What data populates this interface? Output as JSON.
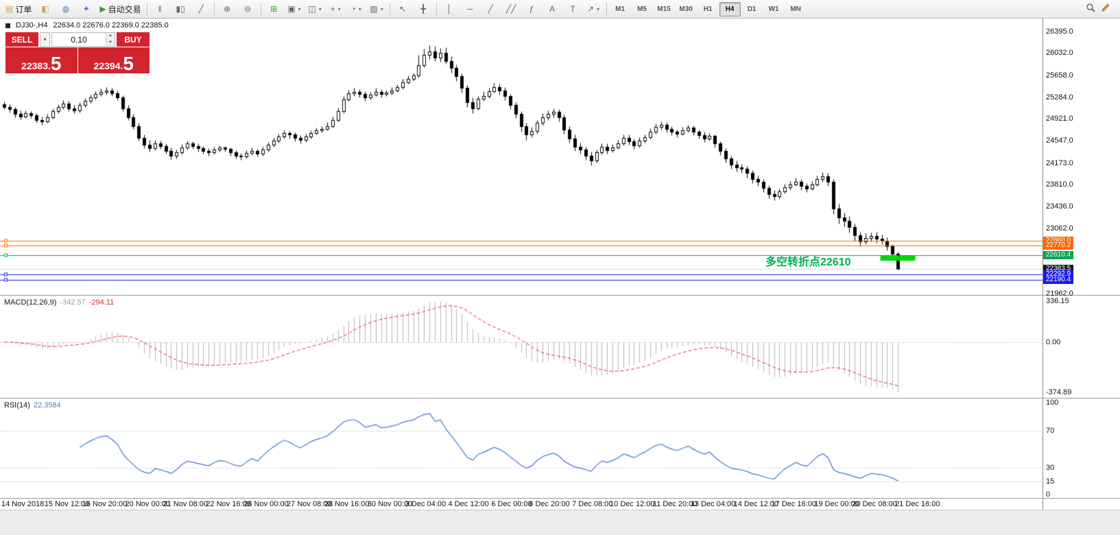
{
  "toolbar": {
    "items": [
      {
        "name": "new-order-button",
        "glyph": "▤",
        "color": "#caa64a",
        "label": "订单"
      },
      {
        "name": "chart-window-icon",
        "glyph": "◧",
        "color": "#caa64a"
      },
      {
        "name": "market-watch-icon",
        "glyph": "◍",
        "color": "#4a7ebb"
      },
      {
        "name": "navigator-icon",
        "glyph": "✦",
        "color": "#4a7ebb"
      },
      {
        "name": "autotrading-button",
        "glyph": "▶",
        "color": "#2e9e2e",
        "label": "自动交易"
      },
      {
        "type": "sep"
      },
      {
        "name": "bar-chart-icon",
        "glyph": "‖"
      },
      {
        "name": "candlestick-chart-icon",
        "glyph": "▮▯"
      },
      {
        "name": "line-chart-icon",
        "glyph": "╱"
      },
      {
        "type": "sep"
      },
      {
        "name": "zoom-in-icon",
        "glyph": "⊕"
      },
      {
        "name": "zoom-out-icon",
        "glyph": "⊖"
      },
      {
        "type": "sep"
      },
      {
        "name": "tile-windows-icon",
        "glyph": "⊞",
        "color": "#3a9e3a"
      },
      {
        "name": "new-chart-icon",
        "glyph": "▣",
        "caret": true
      },
      {
        "name": "profiles-icon",
        "glyph": "◫",
        "caret": true
      },
      {
        "name": "indicators-icon",
        "glyph": "+",
        "color": "#2e9e2e",
        "caret": true
      },
      {
        "name": "periods-icon",
        "glyph": "◔",
        "caret": true
      },
      {
        "name": "templates-icon",
        "glyph": "▨",
        "caret": true
      },
      {
        "type": "sep"
      },
      {
        "name": "cursor-icon",
        "glyph": "↖"
      },
      {
        "name": "crosshair-icon",
        "glyph": "╋"
      },
      {
        "type": "sep"
      },
      {
        "name": "vertical-line-icon",
        "glyph": "│"
      },
      {
        "name": "horizontal-line-icon",
        "glyph": "─"
      },
      {
        "name": "trendline-icon",
        "glyph": "╱"
      },
      {
        "name": "channel-icon",
        "glyph": "╱╱"
      },
      {
        "name": "fibonacci-icon",
        "glyph": "ƒ"
      },
      {
        "name": "text-icon",
        "glyph": "A"
      },
      {
        "name": "label-icon",
        "glyph": "T"
      },
      {
        "name": "arrows-icon",
        "glyph": "↗",
        "caret": true
      },
      {
        "type": "sep"
      },
      {
        "type": "timeframes"
      }
    ],
    "timeframes": [
      "M1",
      "M5",
      "M15",
      "M30",
      "H1",
      "H4",
      "D1",
      "W1",
      "MN"
    ],
    "active_timeframe": "H4"
  },
  "chart": {
    "title": "DJ30-,H4",
    "ohlc": "22634.0 22676.0 22369.0 22385.0",
    "annotation": "多空转折点22610",
    "price_axis_labels": [
      "26395.0",
      "26032.0",
      "25658.0",
      "25284.0",
      "24921.0",
      "24547.0",
      "24173.0",
      "23810.0",
      "23436.0",
      "23062.0",
      "21962.0"
    ],
    "badges": [
      {
        "text": "22860.0",
        "color": "#ff6600",
        "value": 22860.0
      },
      {
        "text": "22770.2",
        "color": "#ff6600",
        "value": 22770.2
      },
      {
        "text": "22610.4",
        "color": "#00a651",
        "value": 22610.4
      },
      {
        "text": "22383.5",
        "color": "#15151f",
        "value": 22383.5
      },
      {
        "text": "22292.9",
        "color": "#1a1aee",
        "value": 22292.9
      },
      {
        "text": "22190.4",
        "color": "#1a1aee",
        "value": 22190.4
      }
    ]
  },
  "trade_panel": {
    "sell_label": "SELL",
    "buy_label": "BUY",
    "volume": "0.10",
    "sell_price_main": "22383.",
    "sell_price_big": "5",
    "buy_price_main": "22394.",
    "buy_price_big": "5"
  },
  "macd": {
    "label": "MACD(12,26,9)",
    "value1": "-342.57",
    "value2": "-294.11",
    "axis": [
      "336.15",
      "0.00",
      "-374.89"
    ]
  },
  "rsi": {
    "label": "RSI(14)",
    "value": "22.3584",
    "axis": [
      "100",
      "70",
      "30",
      "15",
      "0"
    ],
    "levels": [
      70,
      30,
      15
    ]
  },
  "time_axis": [
    {
      "t": "14 Nov 2018",
      "bar": 0
    },
    {
      "t": "15 Nov 12:00",
      "bar": 8
    },
    {
      "t": "16 Nov 20:00",
      "bar": 15
    },
    {
      "t": "20 Nov 00:00",
      "bar": 23
    },
    {
      "t": "21 Nov 08:00",
      "bar": 30
    },
    {
      "t": "22 Nov 16:00",
      "bar": 38
    },
    {
      "t": "26 Nov 00:00",
      "bar": 45
    },
    {
      "t": "27 Nov 08:00",
      "bar": 53
    },
    {
      "t": "28 Nov 16:00",
      "bar": 60
    },
    {
      "t": "30 Nov 00:00",
      "bar": 68
    },
    {
      "t": "3 Dec 04:00",
      "bar": 75
    },
    {
      "t": "4 Dec 12:00",
      "bar": 83
    },
    {
      "t": "6 Dec 00:00",
      "bar": 91
    },
    {
      "t": "6 Dec 20:00",
      "bar": 98
    },
    {
      "t": "7 Dec 08:00",
      "bar": 106
    },
    {
      "t": "10 Dec 12:00",
      "bar": 113
    },
    {
      "t": "11 Dec 20:00",
      "bar": 121
    },
    {
      "t": "13 Dec 04:00",
      "bar": 128
    },
    {
      "t": "14 Dec 12:00",
      "bar": 136
    },
    {
      "t": "17 Dec 16:00",
      "bar": 143
    },
    {
      "t": "19 Dec 00:00",
      "bar": 151
    },
    {
      "t": "20 Dec 08:00",
      "bar": 158
    },
    {
      "t": "21 Dec 16:00",
      "bar": 166
    }
  ],
  "chart_data": {
    "type": "candlestick",
    "symbol": "DJ30-",
    "period": "H4",
    "y_range": [
      21962,
      26395
    ],
    "bid_line": 22383.5,
    "hlines": [
      {
        "value": 22860.0,
        "color": "#ff6600"
      },
      {
        "value": 22770.2,
        "color": "#ff6600"
      },
      {
        "value": 22610.4,
        "color": "#00a651"
      },
      {
        "value": 22292.9,
        "color": "#1a1aee"
      },
      {
        "value": 22190.4,
        "color": "#1a1aee"
      }
    ],
    "highlight_segment": {
      "price": 22560,
      "start_bar": 163,
      "end_bar": 169.5,
      "color": "#00d800",
      "thickness": 7
    },
    "indicators": [
      {
        "name": "MACD",
        "params": [
          12,
          26,
          9
        ],
        "values": [
          -342.57,
          -294.11
        ]
      },
      {
        "name": "RSI",
        "params": [
          14
        ],
        "value": 22.3584
      }
    ],
    "candles": [
      [
        25160,
        25210,
        25080,
        25120
      ],
      [
        25120,
        25170,
        25030,
        25080
      ],
      [
        25080,
        25120,
        24950,
        25000
      ],
      [
        25000,
        25060,
        24910,
        24960
      ],
      [
        24960,
        25060,
        24930,
        25010
      ],
      [
        25010,
        25050,
        24930,
        24980
      ],
      [
        24980,
        25010,
        24850,
        24900
      ],
      [
        24900,
        24960,
        24820,
        24870
      ],
      [
        24870,
        25000,
        24850,
        24950
      ],
      [
        24950,
        25100,
        24920,
        25050
      ],
      [
        25050,
        25160,
        25010,
        25120
      ],
      [
        25120,
        25230,
        25080,
        25180
      ],
      [
        25180,
        25220,
        25050,
        25100
      ],
      [
        25100,
        25150,
        25010,
        25060
      ],
      [
        25060,
        25200,
        25030,
        25150
      ],
      [
        25150,
        25270,
        25120,
        25220
      ],
      [
        25220,
        25330,
        25190,
        25280
      ],
      [
        25280,
        25390,
        25250,
        25340
      ],
      [
        25340,
        25430,
        25300,
        25380
      ],
      [
        25380,
        25460,
        25330,
        25400
      ],
      [
        25400,
        25440,
        25300,
        25350
      ],
      [
        25350,
        25400,
        25230,
        25280
      ],
      [
        25280,
        25320,
        25050,
        25100
      ],
      [
        25100,
        25150,
        24900,
        24950
      ],
      [
        24950,
        25000,
        24750,
        24800
      ],
      [
        24800,
        24850,
        24550,
        24600
      ],
      [
        24600,
        24660,
        24420,
        24480
      ],
      [
        24480,
        24560,
        24370,
        24420
      ],
      [
        24420,
        24560,
        24390,
        24500
      ],
      [
        24500,
        24550,
        24410,
        24460
      ],
      [
        24460,
        24500,
        24330,
        24380
      ],
      [
        24380,
        24430,
        24240,
        24290
      ],
      [
        24290,
        24400,
        24250,
        24350
      ],
      [
        24350,
        24490,
        24320,
        24440
      ],
      [
        24440,
        24550,
        24400,
        24500
      ],
      [
        24500,
        24540,
        24410,
        24460
      ],
      [
        24460,
        24500,
        24370,
        24420
      ],
      [
        24420,
        24460,
        24330,
        24380
      ],
      [
        24380,
        24420,
        24300,
        24350
      ],
      [
        24350,
        24450,
        24320,
        24400
      ],
      [
        24400,
        24470,
        24360,
        24430
      ],
      [
        24430,
        24460,
        24360,
        24410
      ],
      [
        24410,
        24440,
        24300,
        24350
      ],
      [
        24350,
        24390,
        24250,
        24300
      ],
      [
        24300,
        24340,
        24230,
        24280
      ],
      [
        24280,
        24390,
        24250,
        24340
      ],
      [
        24340,
        24430,
        24310,
        24380
      ],
      [
        24380,
        24410,
        24280,
        24330
      ],
      [
        24330,
        24450,
        24300,
        24400
      ],
      [
        24400,
        24530,
        24370,
        24480
      ],
      [
        24480,
        24600,
        24450,
        24550
      ],
      [
        24550,
        24670,
        24520,
        24620
      ],
      [
        24620,
        24730,
        24590,
        24680
      ],
      [
        24680,
        24710,
        24590,
        24650
      ],
      [
        24650,
        24690,
        24540,
        24600
      ],
      [
        24600,
        24640,
        24510,
        24560
      ],
      [
        24560,
        24670,
        24530,
        24620
      ],
      [
        24620,
        24730,
        24590,
        24680
      ],
      [
        24680,
        24770,
        24650,
        24720
      ],
      [
        24720,
        24800,
        24690,
        24750
      ],
      [
        24750,
        24860,
        24720,
        24800
      ],
      [
        24800,
        24960,
        24770,
        24900
      ],
      [
        24900,
        25110,
        24870,
        25050
      ],
      [
        25050,
        25310,
        25020,
        25250
      ],
      [
        25250,
        25410,
        25220,
        25350
      ],
      [
        25350,
        25440,
        25300,
        25380
      ],
      [
        25380,
        25420,
        25280,
        25340
      ],
      [
        25340,
        25390,
        25220,
        25280
      ],
      [
        25280,
        25380,
        25250,
        25330
      ],
      [
        25330,
        25440,
        25300,
        25380
      ],
      [
        25380,
        25420,
        25280,
        25340
      ],
      [
        25340,
        25410,
        25300,
        25360
      ],
      [
        25360,
        25450,
        25330,
        25400
      ],
      [
        25400,
        25500,
        25370,
        25450
      ],
      [
        25450,
        25590,
        25420,
        25540
      ],
      [
        25540,
        25650,
        25510,
        25600
      ],
      [
        25600,
        25700,
        25560,
        25650
      ],
      [
        25650,
        26000,
        25620,
        25830
      ],
      [
        25830,
        26100,
        25790,
        26000
      ],
      [
        26000,
        26160,
        25930,
        26060
      ],
      [
        26060,
        26150,
        25900,
        25960
      ],
      [
        25960,
        26120,
        25880,
        26040
      ],
      [
        26040,
        26130,
        25850,
        25900
      ],
      [
        25900,
        25980,
        25700,
        25780
      ],
      [
        25780,
        25840,
        25560,
        25640
      ],
      [
        25640,
        25690,
        25360,
        25440
      ],
      [
        25440,
        25490,
        25120,
        25200
      ],
      [
        25200,
        25280,
        25020,
        25100
      ],
      [
        25100,
        25310,
        25070,
        25260
      ],
      [
        25260,
        25390,
        25220,
        25310
      ],
      [
        25310,
        25440,
        25270,
        25390
      ],
      [
        25390,
        25520,
        25360,
        25460
      ],
      [
        25460,
        25510,
        25330,
        25400
      ],
      [
        25400,
        25450,
        25230,
        25300
      ],
      [
        25300,
        25340,
        25080,
        25150
      ],
      [
        25150,
        25200,
        24930,
        25000
      ],
      [
        25000,
        25050,
        24700,
        24790
      ],
      [
        24790,
        24850,
        24560,
        24650
      ],
      [
        24650,
        24780,
        24610,
        24710
      ],
      [
        24710,
        24900,
        24670,
        24850
      ],
      [
        24850,
        25010,
        24810,
        24950
      ],
      [
        24950,
        25060,
        24900,
        25000
      ],
      [
        25000,
        25100,
        24950,
        25040
      ],
      [
        25040,
        25090,
        24870,
        24940
      ],
      [
        24940,
        24990,
        24670,
        24740
      ],
      [
        24740,
        24800,
        24520,
        24590
      ],
      [
        24590,
        24650,
        24380,
        24450
      ],
      [
        24450,
        24520,
        24330,
        24400
      ],
      [
        24400,
        24450,
        24230,
        24300
      ],
      [
        24300,
        24360,
        24130,
        24210
      ],
      [
        24210,
        24400,
        24180,
        24350
      ],
      [
        24350,
        24510,
        24320,
        24450
      ],
      [
        24450,
        24500,
        24330,
        24390
      ],
      [
        24390,
        24490,
        24350,
        24440
      ],
      [
        24440,
        24560,
        24410,
        24500
      ],
      [
        24500,
        24660,
        24470,
        24600
      ],
      [
        24600,
        24650,
        24480,
        24540
      ],
      [
        24540,
        24590,
        24410,
        24470
      ],
      [
        24470,
        24610,
        24440,
        24550
      ],
      [
        24550,
        24660,
        24520,
        24610
      ],
      [
        24610,
        24760,
        24580,
        24700
      ],
      [
        24700,
        24840,
        24670,
        24780
      ],
      [
        24780,
        24880,
        24740,
        24820
      ],
      [
        24820,
        24860,
        24690,
        24750
      ],
      [
        24750,
        24790,
        24640,
        24700
      ],
      [
        24700,
        24740,
        24610,
        24670
      ],
      [
        24670,
        24780,
        24640,
        24720
      ],
      [
        24720,
        24820,
        24690,
        24770
      ],
      [
        24770,
        24810,
        24640,
        24700
      ],
      [
        24700,
        24740,
        24580,
        24640
      ],
      [
        24640,
        24700,
        24530,
        24590
      ],
      [
        24590,
        24680,
        24550,
        24630
      ],
      [
        24630,
        24660,
        24430,
        24500
      ],
      [
        24500,
        24540,
        24310,
        24380
      ],
      [
        24380,
        24420,
        24180,
        24250
      ],
      [
        24250,
        24300,
        24080,
        24150
      ],
      [
        24150,
        24220,
        24030,
        24100
      ],
      [
        24100,
        24160,
        24010,
        24070
      ],
      [
        24070,
        24120,
        23930,
        24000
      ],
      [
        24000,
        24050,
        23830,
        23900
      ],
      [
        23900,
        23960,
        23780,
        23850
      ],
      [
        23850,
        23900,
        23680,
        23750
      ],
      [
        23750,
        23800,
        23580,
        23650
      ],
      [
        23650,
        23720,
        23540,
        23610
      ],
      [
        23610,
        23740,
        23570,
        23690
      ],
      [
        23690,
        23820,
        23660,
        23760
      ],
      [
        23760,
        23870,
        23720,
        23810
      ],
      [
        23810,
        23920,
        23780,
        23860
      ],
      [
        23860,
        23900,
        23710,
        23780
      ],
      [
        23780,
        23830,
        23680,
        23740
      ],
      [
        23740,
        23870,
        23710,
        23810
      ],
      [
        23810,
        23960,
        23780,
        23900
      ],
      [
        23900,
        24020,
        23860,
        23950
      ],
      [
        23950,
        24000,
        23780,
        23850
      ],
      [
        23850,
        23900,
        23310,
        23400
      ],
      [
        23400,
        23480,
        23150,
        23250
      ],
      [
        23250,
        23330,
        23100,
        23190
      ],
      [
        23190,
        23280,
        23000,
        23090
      ],
      [
        23090,
        23150,
        22860,
        22950
      ],
      [
        22950,
        23010,
        22760,
        22850
      ],
      [
        22850,
        22980,
        22800,
        22900
      ],
      [
        22900,
        23000,
        22850,
        22940
      ],
      [
        22940,
        23010,
        22820,
        22890
      ],
      [
        22890,
        22960,
        22800,
        22860
      ],
      [
        22860,
        22920,
        22700,
        22760
      ],
      [
        22760,
        22800,
        22560,
        22640
      ],
      [
        22634,
        22676,
        22369,
        22385
      ]
    ]
  }
}
